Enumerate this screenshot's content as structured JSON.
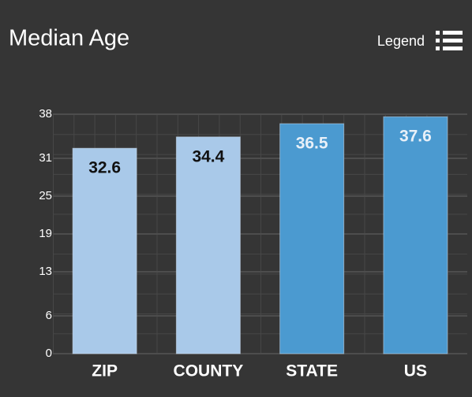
{
  "chart_data": {
    "type": "bar",
    "title": "Median Age",
    "categories": [
      "ZIP",
      "COUNTY",
      "STATE",
      "US"
    ],
    "values": [
      32.6,
      34.4,
      36.5,
      37.6
    ],
    "colors": [
      "#a9c9e9",
      "#a9c9e9",
      "#4b9ad0",
      "#4b9ad0"
    ],
    "ylim": [
      0,
      38
    ],
    "yticks": [
      0,
      6,
      13,
      19,
      25,
      31,
      38
    ],
    "grid": true
  },
  "legend_button": "Legend"
}
